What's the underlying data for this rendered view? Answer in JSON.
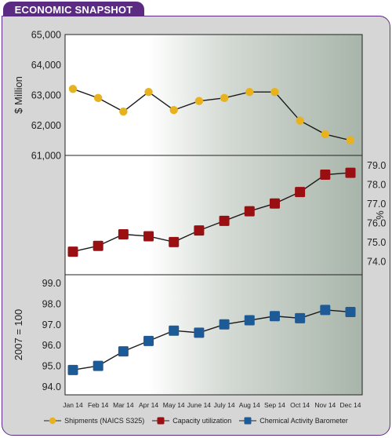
{
  "header": {
    "title": "ECONOMIC SNAPSHOT"
  },
  "colors": {
    "shipments": "#e8b21e",
    "capacity": "#9a0f12",
    "barometer": "#1d5a96",
    "frame": "#5b2a83"
  },
  "chart_data": [
    {
      "type": "line",
      "series": [
        {
          "name": "Shipments (NAICS S325)",
          "values": [
            63200,
            62900,
            62450,
            63100,
            62500,
            62800,
            62900,
            63100,
            63100,
            62150,
            61700,
            61500
          ]
        }
      ],
      "ylabel": "$ Million",
      "ylim": [
        61000,
        65000
      ],
      "yticks": [
        "61,000",
        "62,000",
        "63,000",
        "64,000",
        "65,000"
      ],
      "tick_values": [
        61000,
        62000,
        63000,
        64000,
        65000
      ]
    },
    {
      "type": "line",
      "series": [
        {
          "name": "Capacity utilization",
          "values": [
            74.5,
            74.8,
            75.4,
            75.3,
            75.0,
            75.6,
            76.1,
            76.6,
            77.0,
            77.6,
            78.5,
            78.6
          ]
        }
      ],
      "ylabel": "%",
      "ylim": [
        73.3,
        79.5
      ],
      "yticks": [
        "74.0",
        "75.0",
        "76.0",
        "77.0",
        "78.0",
        "79.0"
      ],
      "tick_values": [
        74,
        75,
        76,
        77,
        78,
        79
      ]
    },
    {
      "type": "line",
      "series": [
        {
          "name": "Chemical Activity Barometer",
          "values": [
            94.8,
            95.0,
            95.7,
            96.2,
            96.7,
            96.6,
            97.0,
            97.2,
            97.4,
            97.3,
            97.7,
            97.6
          ]
        }
      ],
      "ylabel": "2007 = 100",
      "ylim": [
        93.6,
        99.4
      ],
      "yticks": [
        "94.0",
        "95.0",
        "96.0",
        "97.0",
        "98.0",
        "99.0"
      ],
      "tick_values": [
        94,
        95,
        96,
        97,
        98,
        99
      ]
    }
  ],
  "categories": [
    "Jan 14",
    "Feb 14",
    "Mar 14",
    "Apr 14",
    "May 14",
    "June 14",
    "July 14",
    "Aug 14",
    "Sep 14",
    "Oct 14",
    "Nov 14",
    "Dec 14"
  ],
  "legend": [
    "Shipments (NAICS S325)",
    "Capacity utilization",
    "Chemical Activity Barometer"
  ]
}
